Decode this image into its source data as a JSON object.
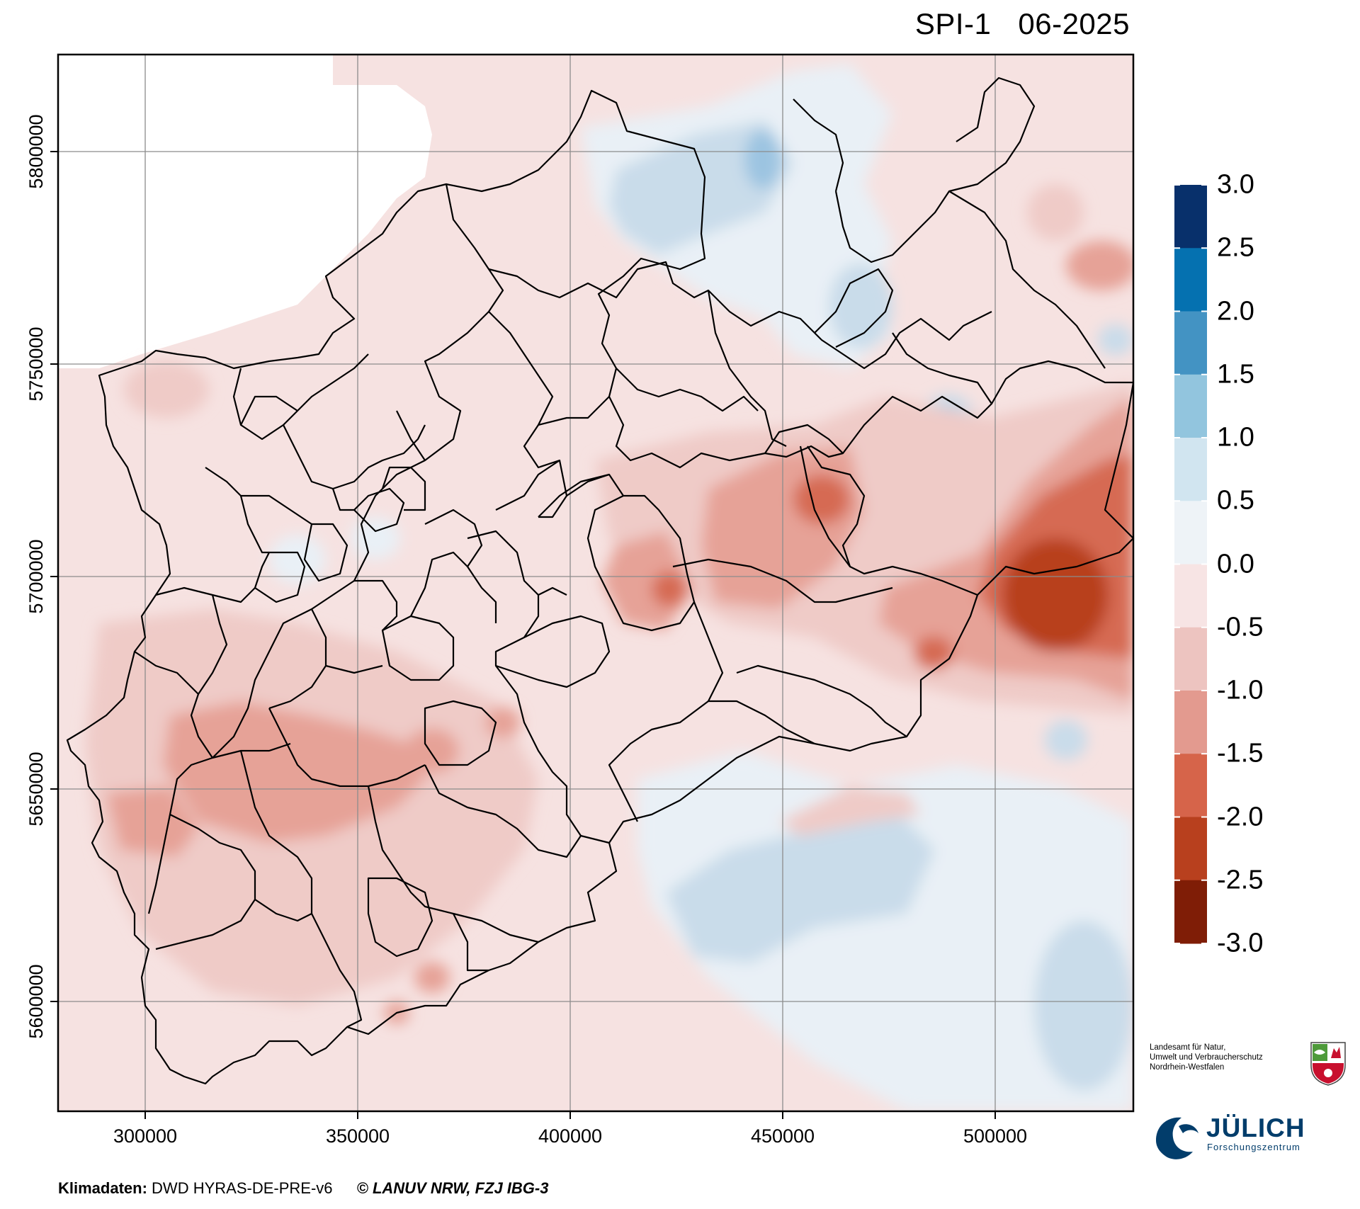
{
  "title": {
    "index": "SPI-1",
    "date": "06-2025"
  },
  "map": {
    "x_ticks": [
      "300000",
      "350000",
      "400000",
      "450000",
      "500000"
    ],
    "y_ticks": [
      "5800000",
      "5750000",
      "5700000",
      "5650000",
      "5600000"
    ],
    "grid": true
  },
  "legend": {
    "labels": [
      "3.0",
      "2.5",
      "2.0",
      "1.5",
      "1.0",
      "0.5",
      "0.0",
      "-0.5",
      "-1.0",
      "-1.5",
      "-2.0",
      "-2.5",
      "-3.0"
    ],
    "colors": [
      "#08306b",
      "#0571b0",
      "#4393c3",
      "#92c5de",
      "#d1e5f0",
      "#eef3f7",
      "#f7e4e4",
      "#edc4c0",
      "#e39a8f",
      "#d6644a",
      "#b8401e",
      "#7f1d06"
    ]
  },
  "field_colors": {
    "near_zero_pos": "#e9f0f6",
    "near_zero_neg": "#f6e2e1",
    "pos_light": "#c9dcea",
    "pos_mid": "#9cc4e1",
    "neg_light": "#efcbc7",
    "neg_mid": "#e6a297",
    "neg_strong": "#d66b52",
    "neg_severe": "#b8401e"
  },
  "footer": {
    "label": "Klimadaten:",
    "source": "DWD HYRAS-DE-PRE-v6",
    "copyright": "© LANUV NRW, FZJ IBG-3"
  },
  "lanuv": {
    "line1": "Landesamt für Natur,",
    "line2": "Umwelt und Verbraucherschutz",
    "line3": "Nordrhein-Westfalen"
  },
  "juelich": {
    "name": "JÜLICH",
    "subtitle": "Forschungszentrum"
  }
}
